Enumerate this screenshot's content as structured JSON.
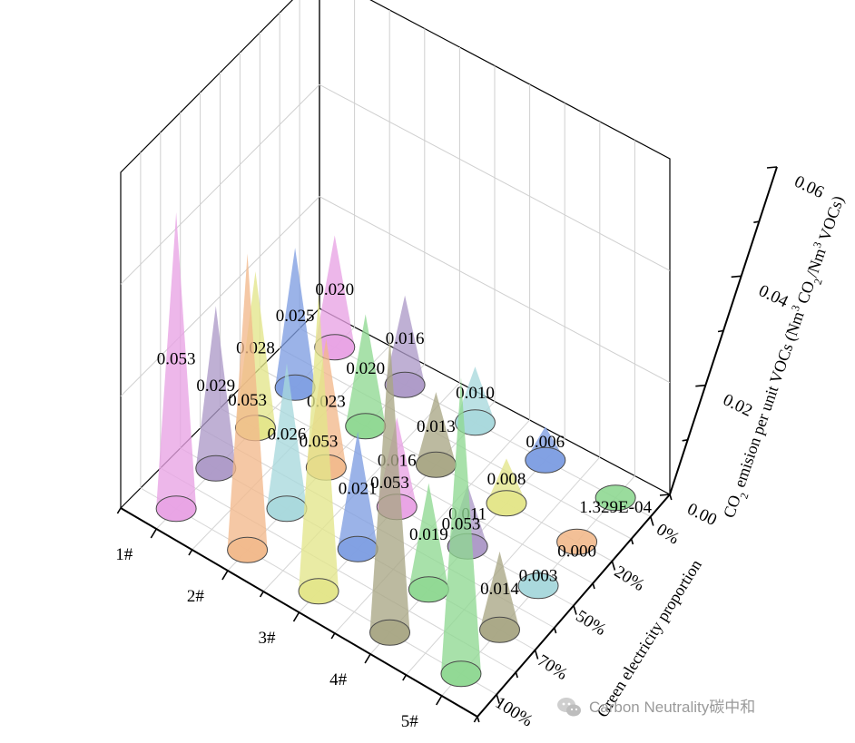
{
  "chart_data": {
    "type": "3d-cone",
    "x_categories": [
      "1#",
      "2#",
      "3#",
      "4#",
      "5#"
    ],
    "y_categories": [
      "0%",
      "20%",
      "50%",
      "70%",
      "100%"
    ],
    "y_axis_title": "Green electricity proportion",
    "z_axis_title": "CO2 emision per unit VOCs (Nm3 CO2/Nm3 VOCs)",
    "z_ticks": [
      "0.00",
      "0.02",
      "0.04",
      "0.06"
    ],
    "zlim": [
      0,
      0.06
    ],
    "grid": true,
    "values": [
      [
        0.053,
        0.053,
        0.053,
        0.053,
        0.053
      ],
      [
        0.029,
        0.026,
        0.021,
        0.019,
        0.014
      ],
      [
        0.028,
        0.023,
        0.016,
        0.011,
        0.003
      ],
      [
        0.025,
        0.02,
        0.013,
        0.008,
        0.0
      ],
      [
        0.02,
        0.016,
        0.01,
        0.006,
        0.0001329
      ]
    ],
    "labels": [
      [
        "0.053",
        "0.053",
        "0.053",
        "0.053",
        "0.053"
      ],
      [
        "0.029",
        "0.026",
        "0.021",
        "0.019",
        "0.014"
      ],
      [
        "0.028",
        "0.023",
        "0.016",
        "0.011",
        "0.003"
      ],
      [
        "0.025",
        "0.020",
        "0.013",
        "0.008",
        "0.000"
      ],
      [
        "0.020",
        "0.016",
        "0.010",
        "0.006",
        "1.329E-04"
      ]
    ],
    "colors": [
      [
        "#e8a3e4",
        "#f2b98c",
        "#e3e58a",
        "#a9a785",
        "#8fd892"
      ],
      [
        "#ad9ac8",
        "#a8d8dc",
        "#7f9ee2",
        "#8fd892",
        "#a9a785"
      ],
      [
        "#e3e58a",
        "#f2b98c",
        "#e8a3e4",
        "#ad9ac8",
        "#a8d8dc"
      ],
      [
        "#7f9ee2",
        "#8fd892",
        "#a9a785",
        "#e3e58a",
        "#f2b98c"
      ],
      [
        "#e8a3e4",
        "#ad9ac8",
        "#a8d8dc",
        "#7f9ee2",
        "#8fd892"
      ]
    ]
  },
  "watermark": {
    "text": "Carbon Neutrality碳中和",
    "icon": "wechat-icon"
  }
}
